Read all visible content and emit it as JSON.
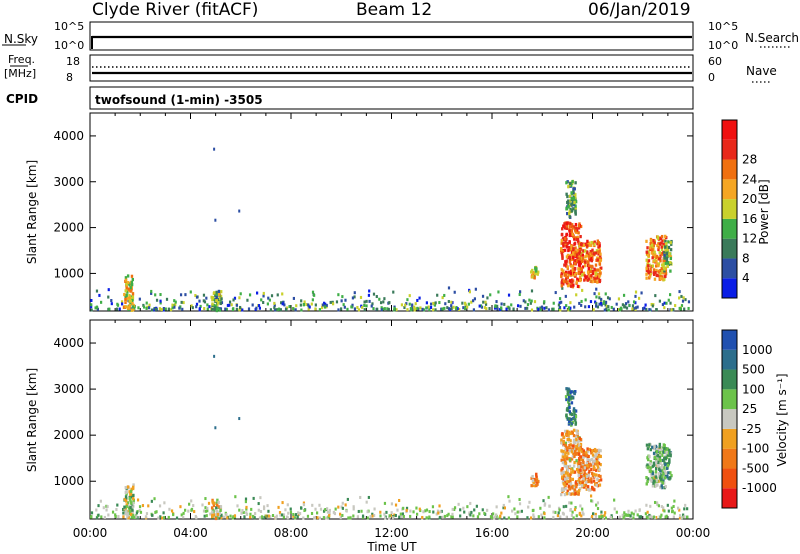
{
  "header": {
    "station": "Clyde River (fitACF)",
    "beam": "Beam 12",
    "date": "06/Jan/2019"
  },
  "panels": {
    "nsky_label": "N.Sky",
    "nsearch_label": "N.Search",
    "freq_label_1": "Freq.",
    "freq_label_2": "[MHz]",
    "nave_label": "Nave",
    "cpid_label": "CPID",
    "cpid_text": "twofsound (1-min)  -3505",
    "noise_left_ticks": [
      "10^5",
      "10^0"
    ],
    "noise_right_ticks": [
      "10^5",
      "10^0"
    ],
    "freq_left_ticks": [
      "18",
      "8"
    ],
    "freq_right_ticks": [
      "60",
      "0"
    ]
  },
  "colors": {
    "power_scale": [
      "#0a1ee6",
      "#2c4ea3",
      "#3a7a5a",
      "#3fae47",
      "#c9d12c",
      "#f5a623",
      "#f07010",
      "#e8281a",
      "#f01010"
    ],
    "velocity_scale": [
      "#2050b0",
      "#2c6e8c",
      "#3a8a55",
      "#6cc34a",
      "#c8c8c0",
      "#f0a020",
      "#f07818",
      "#f05010",
      "#e81818"
    ]
  },
  "chart_data": [
    {
      "type": "heatmap",
      "ylabel": "Slant Range [km]",
      "xlabel": "Time UT",
      "x_ticks": [
        "00:00",
        "04:00",
        "08:00",
        "12:00",
        "16:00",
        "20:00",
        "00:00"
      ],
      "y_ticks": [
        1000,
        2000,
        3000,
        4000
      ],
      "xlim_hours": [
        0,
        24
      ],
      "ylim_km": [
        180,
        4500
      ],
      "colorbar_label": "Power [dB]",
      "colorbar_ticks": [
        "4",
        "8",
        "12",
        "16",
        "20",
        "24",
        "28"
      ],
      "clusters": [
        {
          "t0": 1.3,
          "t1": 1.7,
          "r0": 180,
          "r1": 950,
          "v": 0.55
        },
        {
          "t0": 4.8,
          "t1": 5.2,
          "r0": 180,
          "r1": 600,
          "v": 0.35
        },
        {
          "t0": 17.5,
          "t1": 17.8,
          "r0": 850,
          "r1": 1150,
          "v": 0.6
        },
        {
          "t0": 18.7,
          "t1": 19.5,
          "r0": 700,
          "r1": 2100,
          "v": 0.85
        },
        {
          "t0": 19.4,
          "t1": 20.3,
          "r0": 800,
          "r1": 1700,
          "v": 0.75
        },
        {
          "t0": 18.9,
          "t1": 19.3,
          "r0": 2200,
          "r1": 3000,
          "v": 0.3
        },
        {
          "t0": 22.1,
          "t1": 22.9,
          "r0": 850,
          "r1": 1800,
          "v": 0.7
        },
        {
          "t0": 22.8,
          "t1": 23.1,
          "r0": 1000,
          "r1": 1700,
          "v": 0.4
        }
      ]
    },
    {
      "type": "heatmap",
      "ylabel": "Slant Range [km]",
      "xlabel": "Time UT",
      "x_ticks": [
        "00:00",
        "04:00",
        "08:00",
        "12:00",
        "16:00",
        "20:00",
        "00:00"
      ],
      "y_ticks": [
        1000,
        2000,
        3000,
        4000
      ],
      "xlim_hours": [
        0,
        24
      ],
      "ylim_km": [
        180,
        4500
      ],
      "colorbar_label": "Velocity [m s⁻¹]",
      "colorbar_ticks": [
        "1000",
        "500",
        "100",
        "25",
        "-25",
        "-100",
        "-500",
        "-1000"
      ],
      "clusters": [
        {
          "t0": 1.3,
          "t1": 1.7,
          "r0": 180,
          "r1": 950,
          "v": 0.45
        },
        {
          "t0": 4.8,
          "t1": 5.2,
          "r0": 180,
          "r1": 600,
          "v": 0.5
        },
        {
          "t0": 17.5,
          "t1": 17.8,
          "r0": 850,
          "r1": 1150,
          "v": 0.7
        },
        {
          "t0": 18.7,
          "t1": 19.5,
          "r0": 700,
          "r1": 2100,
          "v": 0.65
        },
        {
          "t0": 19.4,
          "t1": 20.3,
          "r0": 800,
          "r1": 1700,
          "v": 0.7
        },
        {
          "t0": 18.9,
          "t1": 19.3,
          "r0": 2200,
          "r1": 3000,
          "v": 0.2
        },
        {
          "t0": 22.1,
          "t1": 22.9,
          "r0": 850,
          "r1": 1800,
          "v": 0.35
        },
        {
          "t0": 22.8,
          "t1": 23.1,
          "r0": 1000,
          "r1": 1700,
          "v": 0.3
        }
      ]
    }
  ]
}
